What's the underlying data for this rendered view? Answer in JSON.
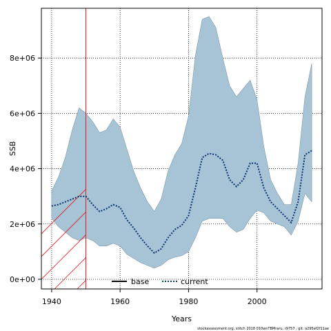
{
  "chart_data": {
    "type": "area",
    "title": "",
    "xlabel": "Years",
    "ylabel": "SSB",
    "xlim": [
      1937,
      2019
    ],
    "ylim": [
      -350000,
      9800000
    ],
    "x_ticks": [
      1940,
      1960,
      1980,
      2000
    ],
    "y_ticks": [
      0,
      2000000,
      4000000,
      6000000,
      8000000
    ],
    "y_tick_labels": [
      "0e+00",
      "2e+06",
      "4e+06",
      "6e+06",
      "8e+06"
    ],
    "grid": true,
    "hatched_region": {
      "x_start": 1937,
      "x_end": 1950,
      "color": "#e31a1c"
    },
    "band_color": "#a6c4d6",
    "legend_position": "bottom-center",
    "years": [
      1940,
      1942,
      1944,
      1946,
      1948,
      1950,
      1952,
      1954,
      1956,
      1958,
      1960,
      1962,
      1964,
      1966,
      1968,
      1970,
      1972,
      1974,
      1976,
      1978,
      1980,
      1982,
      1984,
      1986,
      1988,
      1990,
      1992,
      1994,
      1996,
      1998,
      2000,
      2002,
      2004,
      2006,
      2008,
      2010,
      2012,
      2014,
      2016
    ],
    "upper": [
      3200000,
      3700000,
      4400000,
      5400000,
      6200000,
      6000000,
      5700000,
      5300000,
      5400000,
      5800000,
      5500000,
      4700000,
      3900000,
      3300000,
      2800000,
      2450000,
      2900000,
      3900000,
      4500000,
      4900000,
      5900000,
      8100000,
      9400000,
      9500000,
      9100000,
      8000000,
      7000000,
      6600000,
      6900000,
      7200000,
      6500000,
      4800000,
      3600000,
      3100000,
      2700000,
      2700000,
      4200000,
      6600000,
      7800000
    ],
    "lower": [
      2200000,
      1900000,
      1700000,
      1500000,
      1400000,
      1500000,
      1400000,
      1200000,
      1200000,
      1300000,
      1200000,
      900000,
      750000,
      600000,
      500000,
      400000,
      500000,
      700000,
      800000,
      850000,
      1000000,
      1500000,
      2100000,
      2200000,
      2200000,
      2200000,
      1900000,
      1700000,
      1800000,
      2200000,
      2500000,
      2400000,
      2100000,
      2000000,
      1900000,
      1600000,
      2100000,
      3100000,
      2800000
    ],
    "series": [
      {
        "name": "base",
        "style": "solid",
        "color": "#000000",
        "values": []
      },
      {
        "name": "current",
        "style": "dotted",
        "color": "#08306b",
        "values": [
          2650000,
          2700000,
          2800000,
          2900000,
          3000000,
          3000000,
          2700000,
          2450000,
          2550000,
          2700000,
          2600000,
          2150000,
          1850000,
          1500000,
          1200000,
          950000,
          1100000,
          1500000,
          1800000,
          1950000,
          2300000,
          3300000,
          4400000,
          4550000,
          4500000,
          4300000,
          3600000,
          3350000,
          3600000,
          4200000,
          4200000,
          3300000,
          2800000,
          2550000,
          2300000,
          2050000,
          2800000,
          4500000,
          4650000
        ]
      }
    ]
  },
  "footer": "stockassessment.org, stitch 2018 010wnTBMraru, r9757 , git: a295ef2f11ae"
}
